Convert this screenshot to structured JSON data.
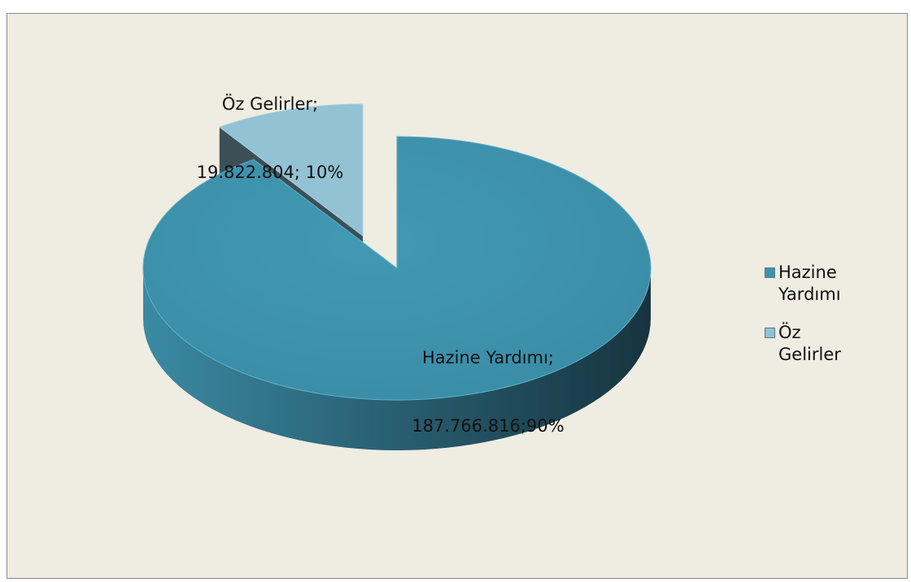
{
  "chart_data": {
    "type": "pie",
    "title": "",
    "legend_position": "right",
    "series": [
      {
        "name": "",
        "categories": [
          "Hazine Yardımı",
          "Öz Gelirler"
        ],
        "values": [
          187766816,
          19822804
        ],
        "value_labels": [
          "187.766.816",
          "19.822.804"
        ],
        "percent_labels": [
          "90%",
          "10%"
        ]
      }
    ],
    "data_labels": {
      "hazine": {
        "line1": "Hazine Yardımı;",
        "line2": "187.766.816;90%"
      },
      "oz": {
        "line1": "Öz Gelirler;",
        "line2": "19.822.804; 10%"
      }
    },
    "legend": [
      {
        "label_line1": "Hazine",
        "label_line2": "Yardımı",
        "color": "#3d93ae"
      },
      {
        "label_line1": "Öz Gelirler",
        "label_line2": "",
        "color": "#90c1d4"
      }
    ],
    "colors": {
      "hazine_top": "#3f94ae",
      "hazine_side_light": "#3a88a1",
      "hazine_side_dark": "#1c3b47",
      "oz_top": "#92c2d4",
      "oz_side": "#3c4f57",
      "background": "#efece2"
    }
  }
}
